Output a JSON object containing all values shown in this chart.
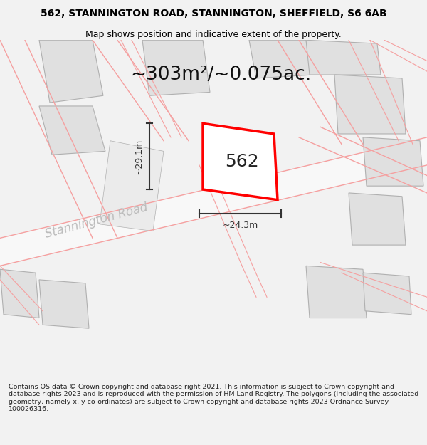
{
  "title": "562, STANNINGTON ROAD, STANNINGTON, SHEFFIELD, S6 6AB",
  "subtitle": "Map shows position and indicative extent of the property.",
  "area_label": "~303m²/~0.075ac.",
  "property_label": "562",
  "dim_vertical": "~29.1m",
  "dim_horizontal": "~24.3m",
  "road_label": "Stannington Road",
  "copyright_text": "Contains OS data © Crown copyright and database right 2021. This information is subject to Crown copyright and database rights 2023 and is reproduced with the permission of HM Land Registry. The polygons (including the associated geometry, namely x, y co-ordinates) are subject to Crown copyright and database rights 2023 Ordnance Survey 100026316.",
  "bg_color": "#f2f2f2",
  "map_bg": "#ffffff",
  "building_color": "#e0e0e0",
  "building_edge": "#b0b0b0",
  "road_outline_color": "#f5a0a0",
  "property_color": "#ff0000",
  "property_fill": "#ffffff",
  "dim_color": "#333333",
  "title_fontsize": 10,
  "subtitle_fontsize": 9,
  "area_fontsize": 19,
  "label_fontsize": 18,
  "road_label_fontsize": 12,
  "copyright_fontsize": 6.8
}
